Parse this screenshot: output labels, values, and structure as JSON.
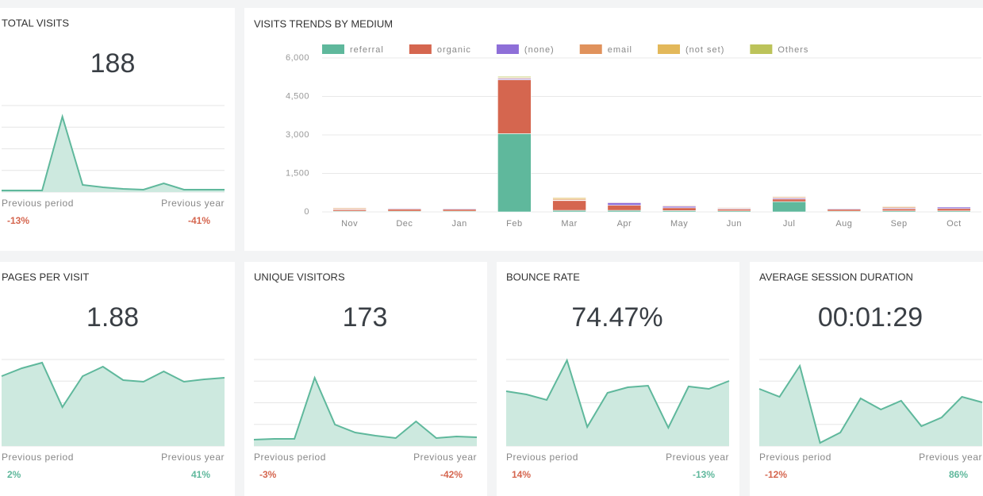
{
  "cards": [
    {
      "title": "TOTAL VISITS",
      "value": "188",
      "sparkline": [
        2,
        2,
        2,
        95,
        9,
        6,
        4,
        3,
        11,
        3,
        3,
        3
      ],
      "previous_period_label": "Previous period",
      "previous_period": {
        "text": "-13%",
        "color": "#d5664f"
      },
      "previous_year_label": "Previous year",
      "previous_year": {
        "text": "-41%",
        "color": "#d5664f"
      }
    },
    {
      "title": "PAGES PER VISIT",
      "value": "1.88",
      "sparkline": [
        88,
        98,
        105,
        49,
        88,
        100,
        83,
        81,
        94,
        81,
        84,
        86
      ],
      "previous_period_label": "Previous period",
      "previous_period": {
        "text": "2%",
        "color": "#5fb89c"
      },
      "previous_year_label": "Previous year",
      "previous_year": {
        "text": "41%",
        "color": "#5fb89c"
      }
    },
    {
      "title": "UNIQUE VISITORS",
      "value": "173",
      "sparkline": [
        8,
        9,
        9,
        86,
        27,
        17,
        13,
        10,
        31,
        10,
        12,
        11
      ],
      "previous_period_label": "Previous period",
      "previous_period": {
        "text": "-3%",
        "color": "#d5664f"
      },
      "previous_year_label": "Previous year",
      "previous_year": {
        "text": "-42%",
        "color": "#d5664f"
      }
    },
    {
      "title": "BOUNCE RATE",
      "value": "74.47%",
      "sparkline": [
        69,
        65,
        58,
        108,
        24,
        67,
        74,
        76,
        23,
        75,
        72,
        82
      ],
      "previous_period_label": "Previous period",
      "previous_period": {
        "text": "14%",
        "color": "#d5664f"
      },
      "previous_year_label": "Previous year",
      "previous_year": {
        "text": "-13%",
        "color": "#5fb89c"
      }
    },
    {
      "title": "AVERAGE SESSION DURATION",
      "value": "00:01:29",
      "sparkline": [
        72,
        62,
        101,
        4,
        17,
        60,
        46,
        57,
        25,
        36,
        62,
        55
      ],
      "previous_period_label": "Previous period",
      "previous_period": {
        "text": "-12%",
        "color": "#d5664f"
      },
      "previous_year_label": "Previous year",
      "previous_year": {
        "text": "86%",
        "color": "#5fb89c"
      }
    }
  ],
  "chart_data": {
    "type": "stacked_bar",
    "title": "VISITS TRENDS BY MEDIUM",
    "categories": [
      "Nov",
      "Dec",
      "Jan",
      "Feb",
      "Mar",
      "Apr",
      "May",
      "Jun",
      "Jul",
      "Aug",
      "Sep",
      "Oct"
    ],
    "series": [
      {
        "name": "referral",
        "color": "#5fb89c",
        "values": [
          30,
          30,
          30,
          3050,
          60,
          60,
          50,
          40,
          400,
          30,
          40,
          40
        ]
      },
      {
        "name": "organic",
        "color": "#d5664f",
        "values": [
          60,
          80,
          70,
          2100,
          380,
          200,
          110,
          70,
          100,
          70,
          80,
          90
        ]
      },
      {
        "name": "(none)",
        "color": "#8e6fd8",
        "values": [
          20,
          30,
          30,
          40,
          20,
          100,
          60,
          30,
          40,
          30,
          30,
          60
        ]
      },
      {
        "name": "email",
        "color": "#e0925c",
        "values": [
          40,
          20,
          20,
          30,
          40,
          20,
          30,
          30,
          40,
          20,
          40,
          20
        ]
      },
      {
        "name": "(not set)",
        "color": "#e3b85a",
        "values": [
          20,
          10,
          10,
          20,
          50,
          20,
          20,
          20,
          20,
          10,
          30,
          10
        ]
      },
      {
        "name": "Others",
        "color": "#bcc35a",
        "values": [
          10,
          10,
          10,
          40,
          20,
          10,
          10,
          10,
          20,
          10,
          20,
          10
        ]
      }
    ],
    "ylim": [
      0,
      6000
    ],
    "yticks": [
      0,
      {
        "value": 1500,
        "label": "1,500"
      },
      {
        "value": 3000,
        "label": "3,000"
      },
      {
        "value": 4500,
        "label": "4,500"
      },
      {
        "value": 6000,
        "label": "6,000"
      }
    ],
    "grid": true
  }
}
